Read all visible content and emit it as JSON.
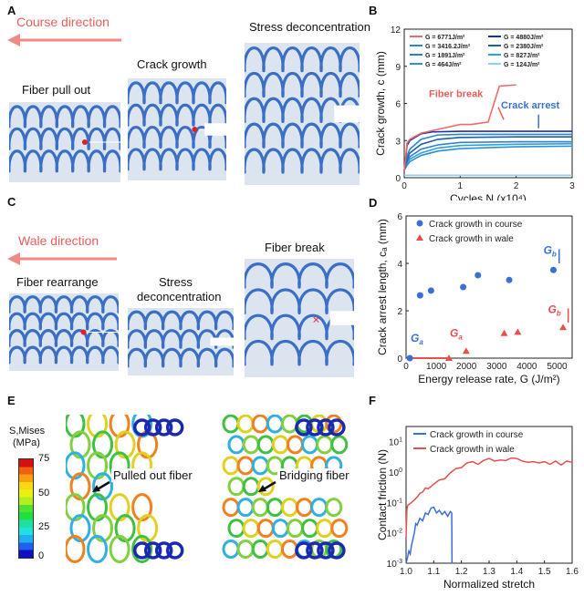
{
  "panels": {
    "A": {
      "label": "A",
      "direction": "Course direction",
      "captions": [
        "Fiber pull out",
        "Crack growth",
        "Stress deconcentration"
      ]
    },
    "C": {
      "label": "C",
      "direction": "Wale direction",
      "captions": [
        "Fiber rearrange",
        "Stress",
        "deconcentration",
        "Fiber break"
      ]
    },
    "E": {
      "label": "E",
      "colorbar_title_1": "S,Mises",
      "colorbar_title_2": "(MPa)",
      "colorbar_ticks": [
        "75",
        "50",
        "25",
        "0"
      ],
      "annotations": [
        "Pulled out fiber",
        "Bridging fiber"
      ]
    },
    "B": {
      "label": "B"
    },
    "D": {
      "label": "D"
    },
    "F": {
      "label": "F"
    }
  },
  "colors": {
    "red": "#e8605c",
    "blue": "#3a6fd8",
    "fabric": "#3b6fc6",
    "fabric_bg": "#dbe4ef"
  },
  "chart_data": [
    {
      "id": "B",
      "type": "line",
      "xlabel": "Cycles N (x10⁴)",
      "ylabel": "Crack growth, c (mm)",
      "xlim": [
        0,
        3
      ],
      "ylim": [
        0,
        12
      ],
      "xticks": [
        "0",
        "1",
        "2",
        "3"
      ],
      "yticks": [
        "0",
        "3",
        "6",
        "9",
        "12"
      ],
      "annotations": [
        "Fiber break",
        "Crack arrest"
      ],
      "series": [
        {
          "name": "G = 6771J/m²",
          "color": "#ef6b6b",
          "x": [
            0,
            0.05,
            0.1,
            0.3,
            0.6,
            1,
            1.2,
            1.5,
            1.7,
            2
          ],
          "y": [
            0.5,
            2.8,
            3.1,
            3.6,
            3.9,
            4.3,
            4.3,
            4.5,
            7.4,
            7.5
          ]
        },
        {
          "name": "G = 4880J/m²",
          "color": "#1f2fa8",
          "x": [
            0,
            0.05,
            0.1,
            0.3,
            0.5,
            1,
            2,
            3
          ],
          "y": [
            0.5,
            2.6,
            3.0,
            3.55,
            3.7,
            3.75,
            3.75,
            3.75
          ]
        },
        {
          "name": "G = 3416.2J/m²",
          "color": "#2a86d4",
          "x": [
            0,
            0.05,
            0.1,
            0.3,
            0.6,
            1,
            2,
            3
          ],
          "y": [
            0.6,
            1.8,
            2.3,
            3.1,
            3.45,
            3.5,
            3.5,
            3.5
          ]
        },
        {
          "name": "G = 2380J/m²",
          "color": "#1f5f9c",
          "x": [
            0,
            0.05,
            0.1,
            0.3,
            0.6,
            1,
            2,
            3
          ],
          "y": [
            0.6,
            1.5,
            2.0,
            2.7,
            3.1,
            3.25,
            3.3,
            3.3
          ]
        },
        {
          "name": "G = 1891J/m²",
          "color": "#2f7fcf",
          "x": [
            0,
            0.05,
            0.1,
            0.3,
            0.6,
            1,
            2,
            3
          ],
          "y": [
            0.6,
            1.3,
            1.7,
            2.3,
            2.65,
            2.85,
            2.9,
            2.9
          ]
        },
        {
          "name": "G = 827J/m²",
          "color": "#2ba2e0",
          "x": [
            0,
            0.05,
            0.1,
            0.3,
            0.6,
            1,
            2,
            3
          ],
          "y": [
            0.6,
            1.1,
            1.5,
            2.0,
            2.4,
            2.6,
            2.7,
            2.75
          ]
        },
        {
          "name": "G = 464J/m²",
          "color": "#2c8fd8",
          "x": [
            0,
            0.05,
            0.1,
            0.3,
            0.6,
            1,
            2,
            3
          ],
          "y": [
            0.6,
            1.0,
            1.3,
            1.8,
            2.15,
            2.35,
            2.5,
            2.55
          ]
        },
        {
          "name": "G = 124J/m²",
          "color": "#8fd0f0",
          "x": [
            0,
            3
          ],
          "y": [
            0.2,
            0.2
          ]
        }
      ]
    },
    {
      "id": "D",
      "type": "scatter",
      "xlabel": "Energy release rate, G (J/m²)",
      "ylabel": "Crack arrest length, cₐ (mm)",
      "xlim": [
        0,
        5500
      ],
      "ylim": [
        0,
        6
      ],
      "xticks": [
        "0",
        "1000",
        "2000",
        "3000",
        "4000",
        "5000"
      ],
      "yticks": [
        "0",
        "2",
        "4",
        "6"
      ],
      "annotations": {
        "course_Ga": "Ga",
        "wale_Ga": "Ga",
        "course_Gb": "Gb",
        "wale_Gb": "Gb"
      },
      "series": [
        {
          "name": "Crack growth in course",
          "marker": "circle",
          "color": "#3a6fd8",
          "x": [
            124,
            464,
            827,
            1891,
            2380,
            3416,
            4880
          ],
          "y": [
            0,
            2.65,
            2.85,
            3.0,
            3.5,
            3.3,
            3.72
          ]
        },
        {
          "name": "Crack growth in wale",
          "marker": "triangle",
          "color": "#e8504c",
          "x": [
            1420,
            1990,
            3250,
            3700,
            5200
          ],
          "y": [
            0,
            0.3,
            1.05,
            1.1,
            1.3
          ]
        }
      ]
    },
    {
      "id": "F",
      "type": "line",
      "xlabel": "Normalized stretch",
      "ylabel": "Contact friction (N)",
      "xlim": [
        1.0,
        1.6
      ],
      "ylim_log10": [
        -3,
        1.5
      ],
      "xticks": [
        "1.0",
        "1.1",
        "1.2",
        "1.3",
        "1.4",
        "1.5",
        "1.6"
      ],
      "yticks": [
        "10-3",
        "10-2",
        "10-1",
        "100",
        "101"
      ],
      "series": [
        {
          "name": "Crack growth in course",
          "color": "#3a6fd8",
          "x": [
            1.0,
            1.005,
            1.01,
            1.015,
            1.02,
            1.03,
            1.035,
            1.04,
            1.05,
            1.06,
            1.07,
            1.08,
            1.09,
            1.1,
            1.11,
            1.12,
            1.13,
            1.14,
            1.15,
            1.16,
            1.165,
            1.166
          ],
          "y": [
            0.001,
            0.0015,
            0.0025,
            0.002,
            0.004,
            0.01,
            0.02,
            0.018,
            0.03,
            0.025,
            0.045,
            0.04,
            0.065,
            0.07,
            0.045,
            0.055,
            0.04,
            0.05,
            0.035,
            0.05,
            0.045,
            0.001
          ]
        },
        {
          "name": "Crack growth in wale",
          "color": "#e8504c",
          "x": [
            1.0,
            1.003,
            1.006,
            1.01,
            1.02,
            1.03,
            1.04,
            1.05,
            1.06,
            1.07,
            1.08,
            1.1,
            1.12,
            1.14,
            1.16,
            1.18,
            1.2,
            1.22,
            1.24,
            1.26,
            1.28,
            1.3,
            1.32,
            1.34,
            1.36,
            1.38,
            1.4,
            1.42,
            1.44,
            1.46,
            1.48,
            1.5,
            1.52,
            1.54,
            1.56,
            1.58,
            1.6
          ],
          "y": [
            0.007,
            0.06,
            0.08,
            0.085,
            0.1,
            0.12,
            0.15,
            0.2,
            0.22,
            0.3,
            0.28,
            0.4,
            0.55,
            0.6,
            0.95,
            1.3,
            1.4,
            2.0,
            2.2,
            1.8,
            2.4,
            2.8,
            2.3,
            2.5,
            2.4,
            2.9,
            2.8,
            2.3,
            2.1,
            2.2,
            2.0,
            2.2,
            1.8,
            2.3,
            1.7,
            2.3,
            2.1
          ]
        }
      ]
    }
  ]
}
